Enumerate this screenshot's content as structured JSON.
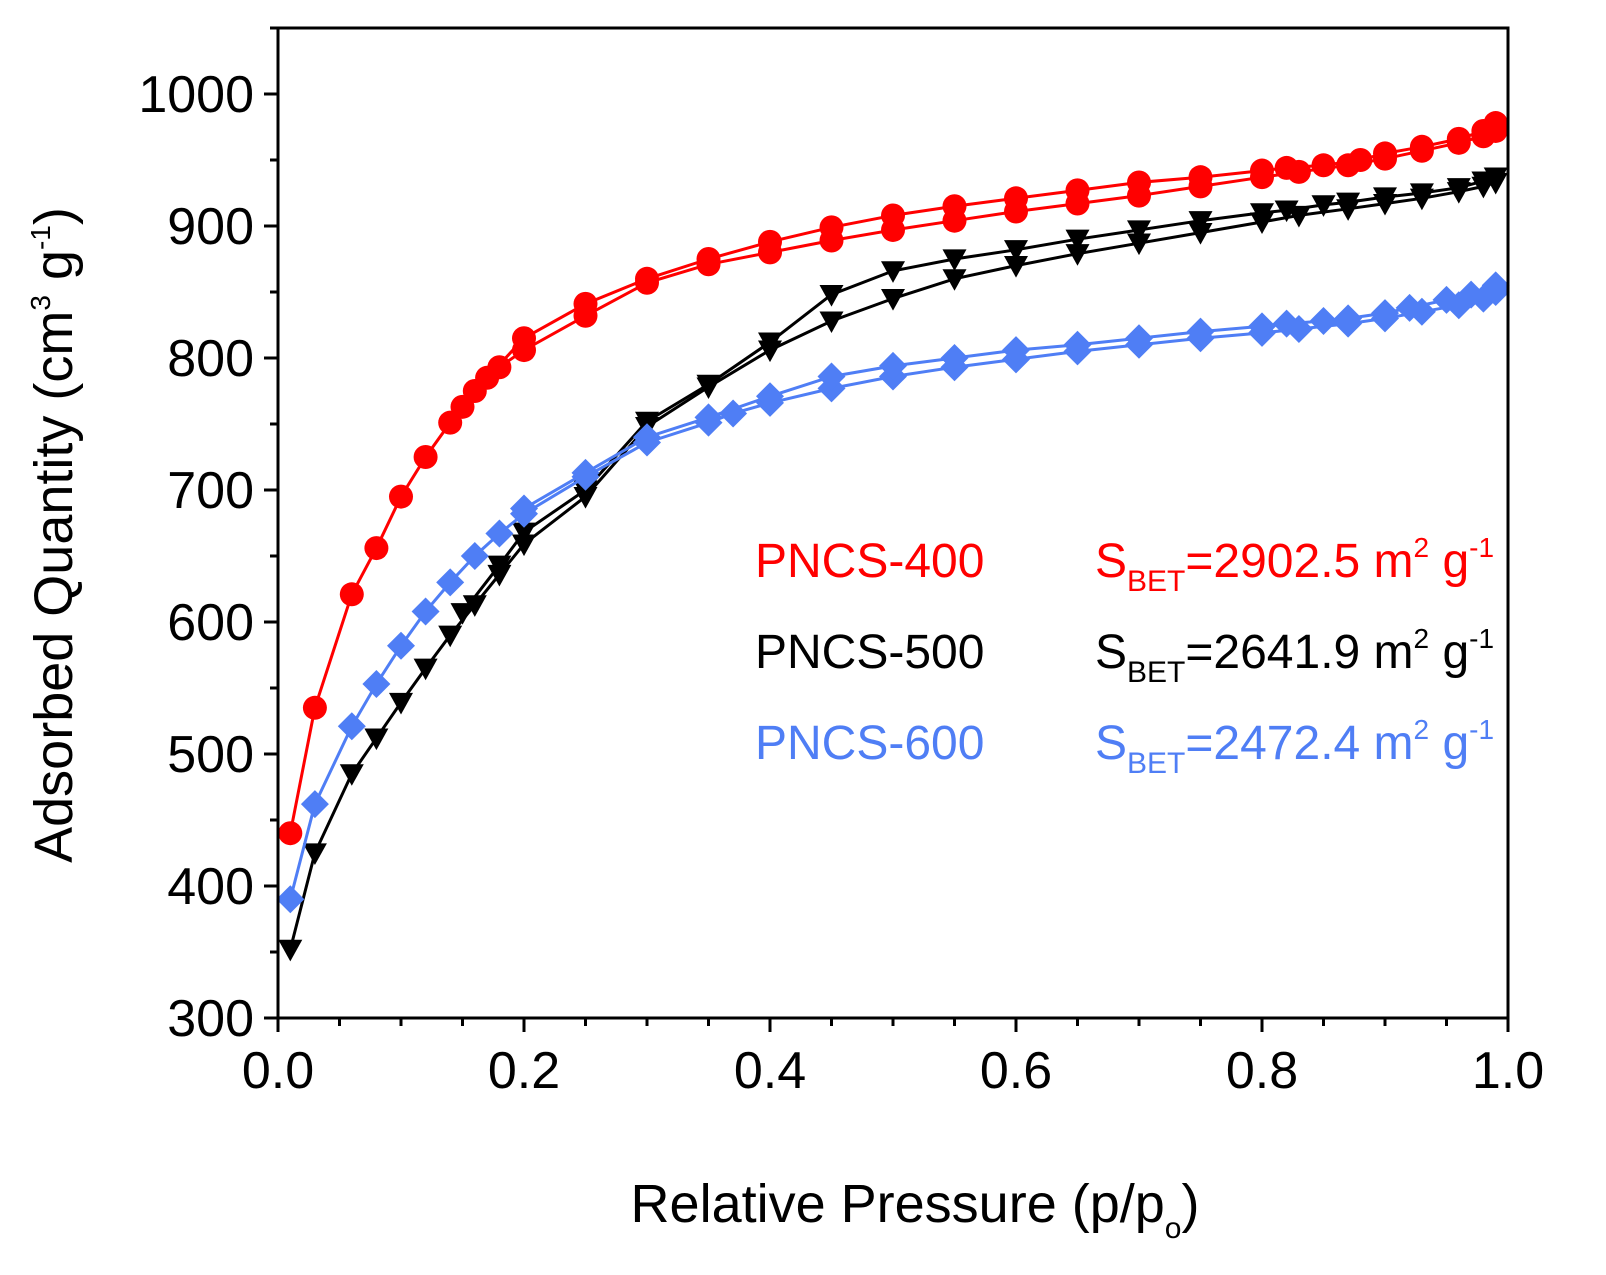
{
  "chart_data": {
    "type": "line",
    "xlabel_main": "Relative Pressure (p/p",
    "xlabel_sub": "o",
    "xlabel_close": ")",
    "ylabel_main": "Adsorbed Quantity (cm",
    "ylabel_sup1": "3",
    "ylabel_mid": " g",
    "ylabel_sup2": "-1",
    "ylabel_close": ")",
    "xlim": [
      0.0,
      1.0
    ],
    "ylim": [
      300,
      1050
    ],
    "x_ticks": [
      0.0,
      0.2,
      0.4,
      0.6,
      0.8,
      1.0
    ],
    "x_tick_labels": [
      "0.0",
      "0.2",
      "0.4",
      "0.6",
      "0.8",
      "1.0"
    ],
    "y_ticks": [
      300,
      400,
      500,
      600,
      700,
      800,
      900,
      1000
    ],
    "y_tick_labels": [
      "300",
      "400",
      "500",
      "600",
      "700",
      "800",
      "900",
      "1000"
    ],
    "series": [
      {
        "name": "PNCS-400",
        "color": "#ff0000",
        "marker": "circle",
        "bet_prefix": "S",
        "bet_sub": "BET",
        "bet_value": "=2902.5 m",
        "bet_sup1": "2",
        "bet_unit": " g",
        "bet_sup2": "-1",
        "adsorption": {
          "x": [
            0.01,
            0.03,
            0.06,
            0.08,
            0.1,
            0.12,
            0.14,
            0.16,
            0.18,
            0.2,
            0.25,
            0.3,
            0.35,
            0.4,
            0.45,
            0.5,
            0.55,
            0.6,
            0.65,
            0.7,
            0.75,
            0.8,
            0.83,
            0.87,
            0.9,
            0.93,
            0.96,
            0.98,
            0.99
          ],
          "y": [
            440,
            535,
            621,
            656,
            695,
            725,
            751,
            775,
            793,
            806,
            832,
            857,
            871,
            880,
            889,
            897,
            904,
            911,
            917,
            923,
            930,
            937,
            941,
            946,
            951,
            957,
            963,
            968,
            972
          ]
        },
        "desorption": {
          "x": [
            0.99,
            0.98,
            0.96,
            0.93,
            0.9,
            0.88,
            0.85,
            0.82,
            0.8,
            0.75,
            0.7,
            0.65,
            0.6,
            0.55,
            0.5,
            0.45,
            0.4,
            0.35,
            0.3,
            0.25,
            0.2,
            0.17,
            0.15
          ],
          "y": [
            978,
            972,
            966,
            960,
            955,
            950,
            946,
            944,
            942,
            937,
            933,
            927,
            921,
            915,
            908,
            899,
            888,
            875,
            860,
            841,
            815,
            785,
            763
          ]
        }
      },
      {
        "name": "PNCS-500",
        "color": "#000000",
        "marker": "triangle-down",
        "bet_prefix": "S",
        "bet_sub": "BET",
        "bet_value": "=2641.9 m",
        "bet_sup1": "2",
        "bet_unit": " g",
        "bet_sup2": "-1",
        "adsorption": {
          "x": [
            0.01,
            0.03,
            0.06,
            0.08,
            0.1,
            0.12,
            0.14,
            0.16,
            0.18,
            0.2,
            0.25,
            0.3,
            0.35,
            0.4,
            0.45,
            0.5,
            0.55,
            0.6,
            0.65,
            0.7,
            0.75,
            0.8,
            0.83,
            0.87,
            0.9,
            0.93,
            0.96,
            0.98,
            0.99
          ],
          "y": [
            352,
            425,
            485,
            512,
            539,
            565,
            590,
            613,
            636,
            659,
            695,
            748,
            778,
            806,
            828,
            845,
            860,
            870,
            879,
            887,
            895,
            903,
            908,
            913,
            917,
            921,
            926,
            930,
            933
          ]
        },
        "desorption": {
          "x": [
            0.99,
            0.98,
            0.96,
            0.93,
            0.9,
            0.87,
            0.85,
            0.82,
            0.8,
            0.75,
            0.7,
            0.65,
            0.6,
            0.55,
            0.5,
            0.45,
            0.4,
            0.35,
            0.3,
            0.25,
            0.2,
            0.18,
            0.15
          ],
          "y": [
            937,
            934,
            929,
            925,
            922,
            918,
            916,
            912,
            910,
            904,
            897,
            890,
            882,
            875,
            866,
            848,
            812,
            780,
            752,
            700,
            668,
            643,
            607
          ]
        }
      },
      {
        "name": "PNCS-600",
        "color": "#4f7ef5",
        "marker": "diamond",
        "bet_prefix": "S",
        "bet_sub": "BET",
        "bet_value": "=2472.4 m",
        "bet_sup1": "2",
        "bet_unit": " g",
        "bet_sup2": "-1",
        "adsorption": {
          "x": [
            0.01,
            0.03,
            0.06,
            0.08,
            0.1,
            0.12,
            0.14,
            0.16,
            0.18,
            0.2,
            0.25,
            0.3,
            0.35,
            0.37,
            0.4,
            0.45,
            0.5,
            0.55,
            0.6,
            0.65,
            0.7,
            0.75,
            0.8,
            0.83,
            0.87,
            0.9,
            0.93,
            0.96,
            0.98,
            0.99
          ],
          "y": [
            390,
            462,
            521,
            553,
            582,
            608,
            630,
            650,
            667,
            682,
            710,
            736,
            751,
            758,
            766,
            777,
            786,
            793,
            799,
            805,
            810,
            815,
            819,
            822,
            826,
            830,
            835,
            840,
            845,
            850
          ]
        },
        "desorption": {
          "x": [
            0.99,
            0.97,
            0.95,
            0.92,
            0.9,
            0.87,
            0.85,
            0.82,
            0.8,
            0.75,
            0.7,
            0.65,
            0.6,
            0.55,
            0.5,
            0.45,
            0.4,
            0.35,
            0.3,
            0.25,
            0.2
          ],
          "y": [
            855,
            848,
            844,
            838,
            834,
            830,
            828,
            826,
            824,
            820,
            815,
            810,
            806,
            800,
            794,
            786,
            771,
            755,
            740,
            713,
            686
          ]
        }
      }
    ]
  }
}
